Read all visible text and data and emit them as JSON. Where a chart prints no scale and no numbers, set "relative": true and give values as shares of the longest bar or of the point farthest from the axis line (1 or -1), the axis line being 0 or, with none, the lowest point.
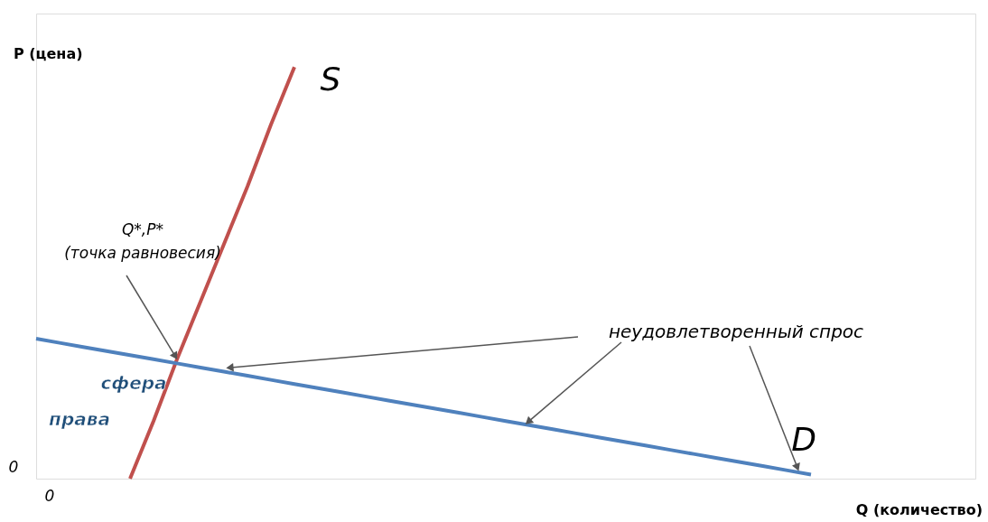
{
  "chart_data": {
    "type": "line",
    "relative": true,
    "xlabel": "Q (количество)",
    "ylabel": "P  (цена)",
    "categories": [
      null,
      null,
      null,
      null,
      null,
      null,
      null,
      null,
      null,
      null,
      null,
      null,
      null,
      null,
      null,
      null,
      null,
      null,
      null,
      null,
      null,
      null,
      null,
      null,
      null,
      null,
      null,
      null,
      null,
      null,
      null,
      null,
      null,
      null,
      null,
      null,
      null,
      null,
      null,
      null,
      null
    ],
    "series": [
      {
        "name": "S",
        "color": "#c0504d",
        "values": [
          null,
          null,
          null,
          null,
          0,
          0.14,
          0.29,
          0.43,
          0.57,
          0.71,
          0.86,
          1,
          null,
          null,
          null,
          null,
          null,
          null,
          null,
          null,
          null,
          null,
          null,
          null,
          null,
          null,
          null,
          null,
          null,
          null,
          null,
          null,
          null,
          null,
          null,
          null,
          null,
          null,
          null,
          null,
          null
        ]
      },
      {
        "name": "D",
        "color": "#4f81bd",
        "values": [
          0.34,
          0.33,
          0.32,
          0.31,
          0.3,
          0.29,
          0.28,
          0.27,
          0.26,
          0.25,
          0.24,
          0.23,
          0.22,
          0.21,
          0.2,
          0.19,
          0.18,
          0.17,
          0.16,
          0.15,
          0.14,
          0.13,
          0.12,
          0.11,
          0.1,
          0.09,
          0.08,
          0.07,
          0.06,
          0.05,
          0.04,
          0.03,
          0.02,
          0.01,
          null,
          null,
          null,
          null,
          null,
          null,
          null
        ]
      }
    ],
    "annotations": [
      "Q*,P*\n(точка равновесия)",
      "неудовлетворенный спрос",
      "сфера\nправа",
      "0",
      "0"
    ],
    "grid": false,
    "tick_labels": false,
    "marker": "none",
    "line_style": "solid"
  }
}
